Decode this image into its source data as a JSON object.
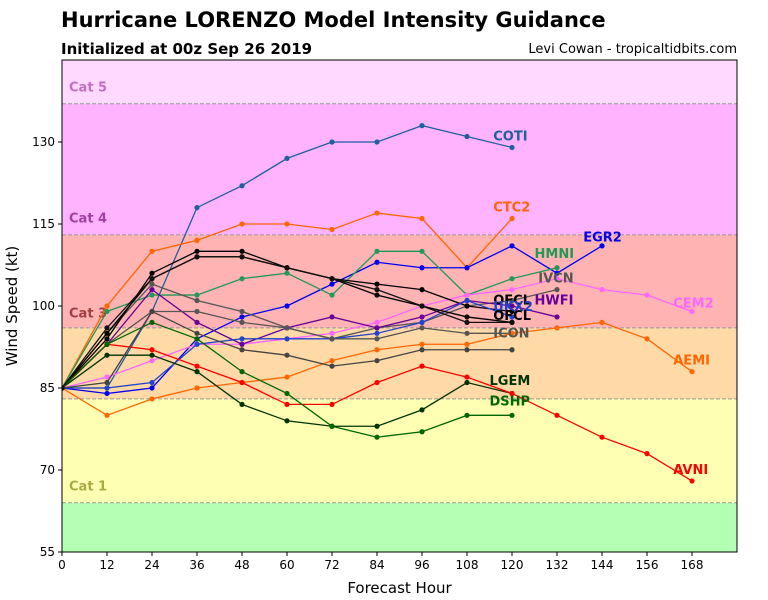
{
  "title": "Hurricane LORENZO Model Intensity Guidance",
  "subtitle": "Initialized at 00z Sep 26 2019",
  "credit": "Levi Cowan - tropicaltidbits.com",
  "chart_data": {
    "type": "line",
    "xlabel": "Forecast Hour",
    "ylabel": "Wind Speed (kt)",
    "xlim": [
      0,
      180
    ],
    "ylim": [
      55,
      145
    ],
    "xticks": [
      0,
      12,
      24,
      36,
      48,
      60,
      72,
      84,
      96,
      108,
      120,
      132,
      144,
      156,
      168
    ],
    "yticks": [
      55,
      70,
      85,
      100,
      115,
      130
    ],
    "bands": [
      {
        "from": 55,
        "to": 64,
        "color": "#b3ffb3"
      },
      {
        "from": 64,
        "to": 83,
        "color": "#ffffb3"
      },
      {
        "from": 83,
        "to": 96,
        "color": "#ffd9a6"
      },
      {
        "from": 96,
        "to": 113,
        "color": "#ffb3b3"
      },
      {
        "from": 113,
        "to": 137,
        "color": "#ffb3ff"
      },
      {
        "from": 137,
        "to": 145,
        "color": "#ffd9ff"
      }
    ],
    "category_labels": [
      {
        "label": "Cat 1",
        "y": 67,
        "color": "#aaaa44"
      },
      {
        "label": "Cat 3",
        "y": 98.6,
        "color": "#a04040"
      },
      {
        "label": "Cat 4",
        "y": 116,
        "color": "#a040a0"
      },
      {
        "label": "Cat 5",
        "y": 140,
        "color": "#c070c0"
      }
    ],
    "series": [
      {
        "name": "COTI",
        "color": "#1f5fa0",
        "x": [
          0,
          12,
          24,
          36,
          48,
          60,
          72,
          84,
          96,
          108,
          120
        ],
        "y": [
          85,
          85,
          99,
          118,
          122,
          127,
          130,
          130,
          133,
          131,
          129
        ],
        "lx": 115,
        "ly": 131
      },
      {
        "name": "CTC2",
        "color": "#ff6600",
        "x": [
          0,
          12,
          24,
          36,
          48,
          60,
          72,
          84,
          96,
          108,
          120
        ],
        "y": [
          85,
          100,
          110,
          112,
          115,
          115,
          114,
          117,
          116,
          107,
          116
        ],
        "lx": 115,
        "ly": 118
      },
      {
        "name": "EGR2",
        "color": "#0000ee",
        "x": [
          0,
          12,
          24,
          36,
          48,
          60,
          72,
          84,
          96,
          108,
          120,
          132,
          144
        ],
        "y": [
          85,
          84,
          85,
          94,
          98,
          100,
          104,
          108,
          107,
          107,
          111,
          106,
          111
        ],
        "lx": 139,
        "ly": 112.5
      },
      {
        "name": "HMNI",
        "color": "#229955",
        "x": [
          0,
          12,
          24,
          36,
          48,
          60,
          72,
          84,
          96,
          108,
          120,
          132
        ],
        "y": [
          85,
          99,
          102,
          102,
          105,
          106,
          102,
          110,
          110,
          102,
          105,
          107
        ],
        "lx": 126,
        "ly": 109.5
      },
      {
        "name": "IVCN",
        "color": "#555555",
        "x": [
          0,
          12,
          24,
          36,
          48,
          60,
          72,
          84,
          96,
          108,
          120,
          132
        ],
        "y": [
          85,
          95,
          104,
          101,
          99,
          96,
          94,
          96,
          97,
          100,
          101,
          103
        ],
        "lx": 127,
        "ly": 105
      },
      {
        "name": "CEM2",
        "color": "#ff66ff",
        "x": [
          0,
          12,
          24,
          36,
          48,
          60,
          72,
          84,
          96,
          108,
          120,
          132,
          144,
          156,
          168
        ],
        "y": [
          85,
          87,
          90,
          93,
          93,
          94,
          95,
          97,
          100,
          102,
          103,
          105,
          103,
          102,
          99
        ],
        "lx": 163,
        "ly": 100.5
      },
      {
        "name": "OFCL",
        "color": "#000000",
        "x": [
          0,
          12,
          24,
          36,
          48,
          60,
          72,
          84,
          96,
          108,
          120
        ],
        "y": [
          85,
          94,
          106,
          110,
          110,
          107,
          105,
          104,
          103,
          100,
          99
        ],
        "lx": 115,
        "ly": 101
      },
      {
        "name": "HWFI",
        "color": "#660099",
        "x": [
          0,
          12,
          24,
          36,
          48,
          60,
          72,
          84,
          96,
          108,
          120,
          132
        ],
        "y": [
          85,
          93,
          103,
          97,
          93,
          96,
          98,
          96,
          98,
          101,
          100,
          98
        ],
        "lx": 126,
        "ly": 101
      },
      {
        "name": "UKX2",
        "color": "#2244cc",
        "x": [
          0,
          12,
          24,
          36,
          48,
          60,
          72,
          84,
          96,
          108,
          120
        ],
        "y": [
          85,
          85,
          86,
          93,
          94,
          94,
          94,
          95,
          97,
          101,
          98
        ],
        "lx": 115,
        "ly": 99.8
      },
      {
        "name": "OFCL",
        "color": "#000000",
        "x": [
          0,
          12,
          24,
          36,
          48,
          60,
          72,
          84,
          96,
          108,
          120
        ],
        "y": [
          85,
          95,
          105,
          109,
          109,
          107,
          105,
          102,
          100,
          98,
          97
        ],
        "lx": 115,
        "ly": 98.2
      },
      {
        "name": "ICON",
        "color": "#555555",
        "x": [
          0,
          12,
          24,
          36,
          48,
          60,
          72,
          84,
          96,
          108,
          120
        ],
        "y": [
          85,
          93,
          99,
          99,
          97,
          96,
          94,
          94,
          96,
          95,
          95
        ],
        "lx": 115,
        "ly": 95
      },
      {
        "name": "AEMI",
        "color": "#ff6600",
        "x": [
          0,
          12,
          24,
          36,
          48,
          60,
          72,
          84,
          96,
          108,
          120,
          132,
          144,
          156,
          168
        ],
        "y": [
          85,
          80,
          83,
          85,
          86,
          87,
          90,
          92,
          93,
          93,
          95,
          96,
          97,
          94,
          88
        ],
        "lx": 163,
        "ly": 90
      },
      {
        "name": "LGEM",
        "color": "#003300",
        "x": [
          0,
          12,
          24,
          36,
          48,
          60,
          72,
          84,
          96,
          108,
          120
        ],
        "y": [
          85,
          91,
          91,
          88,
          82,
          79,
          78,
          78,
          81,
          86,
          84
        ],
        "lx": 114,
        "ly": 86.3
      },
      {
        "name": "AVNI",
        "color": "#ff0000",
        "x": [
          0,
          12,
          24,
          36,
          48,
          60,
          72,
          84,
          96,
          108,
          120,
          132,
          144,
          156,
          168
        ],
        "y": [
          85,
          93,
          92,
          89,
          86,
          82,
          82,
          86,
          89,
          87,
          84,
          80,
          76,
          73,
          68
        ],
        "lx": 163,
        "ly": 70
      },
      {
        "name": "DSHP",
        "color": "#006600",
        "x": [
          0,
          12,
          24,
          36,
          48,
          60,
          72,
          84,
          96,
          108,
          120
        ],
        "y": [
          85,
          93,
          97,
          94,
          88,
          84,
          78,
          76,
          77,
          80,
          80
        ],
        "lx": 114,
        "ly": 82.5
      },
      {
        "name": "",
        "color": "#444444",
        "x": [
          0,
          12,
          24,
          36,
          48,
          60,
          72,
          84,
          96,
          108,
          120
        ],
        "y": [
          85,
          86,
          99,
          95,
          92,
          91,
          89,
          90,
          92,
          92,
          92
        ]
      },
      {
        "name": "",
        "color": "#111111",
        "x": [
          0,
          12,
          24,
          36,
          48,
          60,
          72,
          84,
          96,
          108,
          120
        ],
        "y": [
          85,
          96,
          105,
          109,
          109,
          107,
          105,
          103,
          100,
          97,
          97
        ]
      }
    ]
  }
}
